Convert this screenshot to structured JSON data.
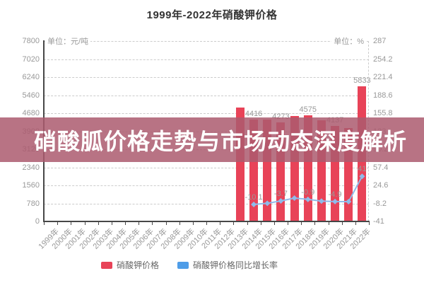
{
  "title": "1999年-2022年硝酸钾价格",
  "banner": {
    "text": "硝酸胍价格走势与市场动态深度解析"
  },
  "units": {
    "left": "单位：元/吨",
    "right": "单位：%"
  },
  "legend": [
    {
      "label": "硝酸钾价格",
      "color": "#e84358"
    },
    {
      "label": "硝酸钾价格同比增长率",
      "color": "#4f9de8"
    }
  ],
  "chart_data": {
    "type": "bar",
    "subtype": "bar-line-combo",
    "title": "1999年-2022年硝酸钾价格",
    "grid": "horizontal-dashed",
    "legend_position": "bottom-center",
    "categories": [
      "1999年",
      "2000年",
      "2001年",
      "2002年",
      "2003年",
      "2004年",
      "2005年",
      "2006年",
      "2007年",
      "2008年",
      "2009年",
      "2010年",
      "2011年",
      "2012年",
      "2013年",
      "2014年",
      "2015年",
      "2016年",
      "2017年",
      "2018年",
      "2019年",
      "2020年",
      "2021年",
      "2022年"
    ],
    "left_axis": {
      "unit": "单位：元/吨",
      "min": 0,
      "max": 7800,
      "ticks": [
        7800,
        7020,
        6240,
        5460,
        4680,
        3900,
        3120,
        2340,
        1560,
        780,
        0
      ]
    },
    "right_axis": {
      "unit": "单位：%",
      "min": -41,
      "max": 287,
      "ticks": [
        287,
        254.2,
        221.4,
        188.6,
        155.8,
        123,
        90.2,
        57.4,
        24.6,
        -8.2,
        -41
      ]
    },
    "series": [
      {
        "name": "硝酸钾价格",
        "type": "bar",
        "axis": "left",
        "color": "#e84358",
        "points": [
          {
            "category": "2013年",
            "value": 4940,
            "label": null
          },
          {
            "category": "2014年",
            "value": 4416,
            "label": "4416"
          },
          {
            "category": "2015年",
            "value": 4400,
            "label": null
          },
          {
            "category": "2016年",
            "value": 4273,
            "label": "4273"
          },
          {
            "category": "2017年",
            "value": 4560,
            "label": null
          },
          {
            "category": "2018年",
            "value": 4575,
            "label": "4575"
          },
          {
            "category": "2019年",
            "value": 4360,
            "label": null
          },
          {
            "category": "2020年",
            "value": 4137,
            "label": "4137"
          },
          {
            "category": "2021年",
            "value": 4050,
            "label": null
          },
          {
            "category": "2022年",
            "value": 5833,
            "label": "5833"
          }
        ]
      },
      {
        "name": "硝酸钾价格同比增长率",
        "type": "line",
        "axis": "right",
        "color": "#8fbbea",
        "points": [
          {
            "category": "2014年",
            "value": -10.1,
            "label": "-10.1"
          },
          {
            "category": "2015年",
            "value": -8,
            "label": null
          },
          {
            "category": "2016年",
            "value": -3.7,
            "label": "-3.7"
          },
          {
            "category": "2017年",
            "value": 1.5,
            "label": null
          },
          {
            "category": "2018年",
            "value": -0.9,
            "label": "-0.9"
          },
          {
            "category": "2019年",
            "value": -4,
            "label": null
          },
          {
            "category": "2020年",
            "value": -4.9,
            "label": "-4.9"
          },
          {
            "category": "2021年",
            "value": -5,
            "label": null
          },
          {
            "category": "2022年",
            "value": 41,
            "label": "41"
          }
        ]
      }
    ]
  }
}
